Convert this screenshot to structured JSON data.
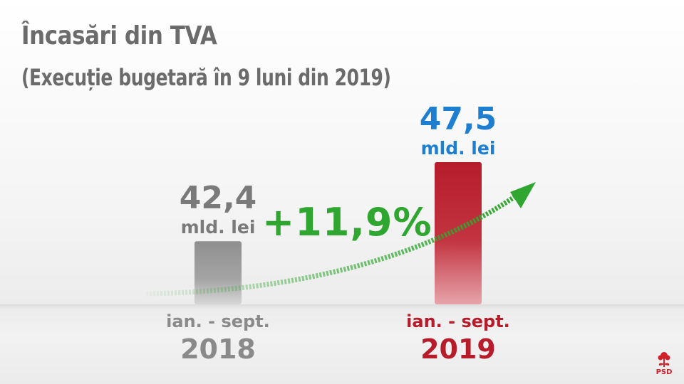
{
  "title": "Încasări din TVA",
  "subtitle": "(Execuție bugetară în 9 luni din 2019)",
  "chart_data": {
    "type": "bar",
    "title": "Încasări din TVA",
    "subtitle": "(Execuție bugetară în 9 luni din 2019)",
    "unit": "mld. lei",
    "categories": [
      "2018",
      "2019"
    ],
    "period_label": "ian. - sept.",
    "values": [
      42.4,
      47.5
    ],
    "value_labels": [
      "42,4",
      "47,5"
    ],
    "bar_colors": [
      "#8f8f8f",
      "#b71c2b"
    ],
    "value_colors": [
      "#7a7a7a",
      "#1e7fd0"
    ],
    "year_colors": [
      "#8a8a8a",
      "#b71c2b"
    ],
    "growth_label": "+11,9%",
    "growth_color": "#2fa62f",
    "ylim": [
      0,
      50
    ]
  },
  "logo": {
    "text": "PSD",
    "icon": "rose-icon",
    "color": "#d0202a"
  }
}
